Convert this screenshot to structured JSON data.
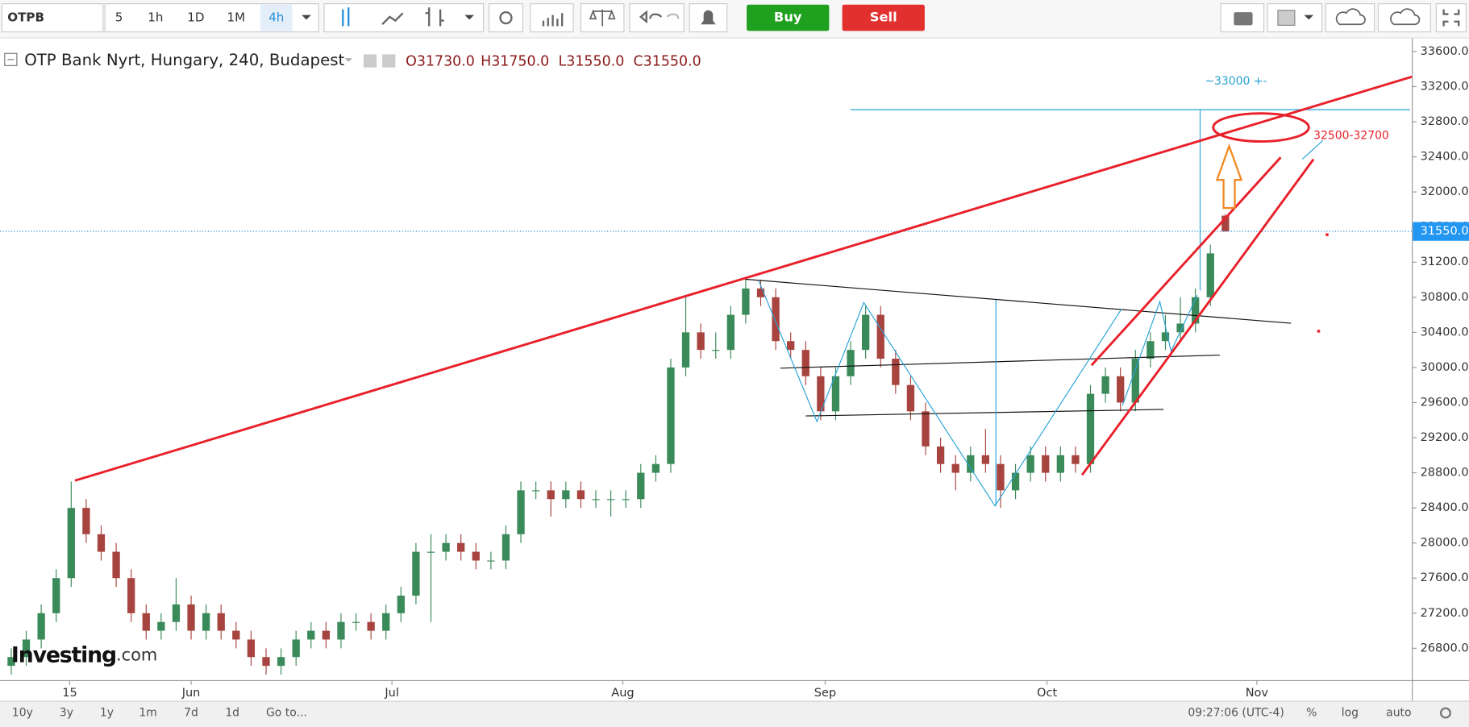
{
  "toolbar": {
    "symbol": "OTPB",
    "intervals": [
      "5",
      "1h",
      "1D",
      "1M",
      "4h"
    ],
    "buy": "Buy",
    "sell": "Sell"
  },
  "bottom_bar": {
    "ranges": [
      "10y",
      "3y",
      "1y",
      "1m",
      "7d",
      "1d"
    ],
    "goto": "Go to...",
    "time": "09:27:06 (UTC-4)",
    "options": [
      "%",
      "log",
      "auto"
    ]
  },
  "logo": [
    "Investing",
    ".com"
  ],
  "chart_data": {
    "type": "candlestick",
    "title": "OTP Bank Nyrt, Hungary, 240, Budapest",
    "legend_ohlc": [
      "O31730.0",
      "H31750.0",
      "L31550.0",
      "C31550.0"
    ],
    "annotations": [
      "~33000 +-",
      "32500-32700"
    ],
    "up_color": "#3b8a5a",
    "down_color": "#a8443f",
    "grid": false,
    "open": [
      26600,
      26700,
      26900,
      27200,
      27600,
      28400,
      28100,
      27900,
      27600,
      27200,
      27000,
      27100,
      27300,
      27000,
      27200,
      27000,
      26900,
      26700,
      26600,
      26700,
      26900,
      27000,
      26900,
      27100,
      27100,
      27000,
      27200,
      27400,
      27900,
      27900,
      28000,
      27900,
      27800,
      27800,
      28100,
      28600,
      28600,
      28500,
      28600,
      28500,
      28500,
      28500,
      28500,
      28800,
      28900,
      30000,
      30400,
      30200,
      30200,
      30600,
      30900,
      30800,
      30300,
      30200,
      29900,
      29500,
      29900,
      30200,
      30600,
      30100,
      29800,
      29500,
      29100,
      28900,
      28800,
      29000,
      28900,
      28600,
      28800,
      29000,
      28800,
      29000,
      28900,
      29700,
      29900,
      29600,
      30100,
      30300,
      30400,
      30500,
      30800,
      31730
    ],
    "high": [
      26800,
      27000,
      27300,
      27700,
      28700,
      28500,
      28200,
      28000,
      27700,
      27300,
      27200,
      27600,
      27400,
      27300,
      27300,
      27100,
      27000,
      26800,
      26800,
      27000,
      27100,
      27100,
      27200,
      27200,
      27200,
      27300,
      27500,
      28000,
      28100,
      28100,
      28100,
      28000,
      27900,
      28200,
      28700,
      28700,
      28700,
      28700,
      28700,
      28600,
      28600,
      28600,
      28900,
      29000,
      30100,
      30800,
      30500,
      30400,
      30700,
      31000,
      31000,
      30900,
      30400,
      30300,
      30000,
      30000,
      30300,
      30700,
      30700,
      30200,
      29900,
      29600,
      29200,
      29000,
      29100,
      29300,
      29000,
      28900,
      29100,
      29100,
      29100,
      29100,
      29800,
      30000,
      30000,
      30200,
      30400,
      30600,
      30800,
      30900,
      31400,
      31750
    ],
    "low": [
      26500,
      26600,
      26800,
      27100,
      27500,
      28000,
      27800,
      27500,
      27100,
      26900,
      26900,
      27000,
      26900,
      26900,
      26900,
      26800,
      26600,
      26500,
      26500,
      26600,
      26800,
      26800,
      26800,
      27000,
      26900,
      26900,
      27100,
      27300,
      27100,
      27800,
      27800,
      27700,
      27700,
      27700,
      28000,
      28500,
      28300,
      28400,
      28400,
      28400,
      28300,
      28400,
      28400,
      28700,
      28800,
      29900,
      30100,
      30100,
      30100,
      30500,
      30700,
      30200,
      30100,
      29800,
      29400,
      29400,
      29800,
      30100,
      30000,
      29700,
      29400,
      29000,
      28800,
      28600,
      28700,
      28800,
      28400,
      28500,
      28700,
      28700,
      28700,
      28800,
      28800,
      29600,
      29500,
      29500,
      30000,
      30200,
      30300,
      30400,
      30700,
      31550
    ],
    "close": [
      26700,
      26900,
      27200,
      27600,
      28400,
      28100,
      27900,
      27600,
      27200,
      27000,
      27100,
      27300,
      27000,
      27200,
      27000,
      26900,
      26700,
      26600,
      26700,
      26900,
      27000,
      26900,
      27100,
      27100,
      27000,
      27200,
      27400,
      27900,
      27900,
      28000,
      27900,
      27800,
      27800,
      28100,
      28600,
      28600,
      28500,
      28600,
      28500,
      28500,
      28500,
      28500,
      28800,
      28900,
      30000,
      30400,
      30200,
      30200,
      30600,
      30900,
      30800,
      30300,
      30200,
      29900,
      29500,
      29900,
      30200,
      30600,
      30100,
      29800,
      29500,
      29100,
      28900,
      28800,
      29000,
      28900,
      28600,
      28800,
      29000,
      28800,
      29000,
      28900,
      29700,
      29900,
      29600,
      30100,
      30300,
      30400,
      30500,
      30800,
      31300,
      31550
    ],
    "xlim": [
      -0.75,
      93.44
    ],
    "xticks": [
      {
        "value": 3.9,
        "label": "15"
      },
      {
        "value": 12,
        "label": "Jun"
      },
      {
        "value": 25.4,
        "label": "Jul"
      },
      {
        "value": 40.8,
        "label": "Aug"
      },
      {
        "value": 54.3,
        "label": "Sep"
      },
      {
        "value": 69.1,
        "label": "Oct"
      },
      {
        "value": 83.1,
        "label": "Nov"
      }
    ],
    "ylim": [
      26437,
      33728
    ],
    "yticks": [
      {
        "value": 26800,
        "label": "26800.0"
      },
      {
        "value": 27200,
        "label": "27200.0"
      },
      {
        "value": 27600,
        "label": "27600.0"
      },
      {
        "value": 28000,
        "label": "28000.0"
      },
      {
        "value": 28400,
        "label": "28400.0"
      },
      {
        "value": 28800,
        "label": "28800.0"
      },
      {
        "value": 29200,
        "label": "29200.0"
      },
      {
        "value": 29600,
        "label": "29600.0"
      },
      {
        "value": 30000,
        "label": "30000.0"
      },
      {
        "value": 30400,
        "label": "30400.0"
      },
      {
        "value": 30800,
        "label": "30800.0"
      },
      {
        "value": 31200,
        "label": "31200.0"
      },
      {
        "value": 31600,
        "label": "31600.0"
      },
      {
        "value": 32000,
        "label": "32000.0"
      },
      {
        "value": 32400,
        "label": "32400.0"
      },
      {
        "value": 32800,
        "label": "32800.0"
      },
      {
        "value": 33200,
        "label": "33200.0"
      },
      {
        "value": 33600,
        "label": "33600.0"
      }
    ],
    "last_price": {
      "value": 31550,
      "label": "31550.0"
    }
  }
}
